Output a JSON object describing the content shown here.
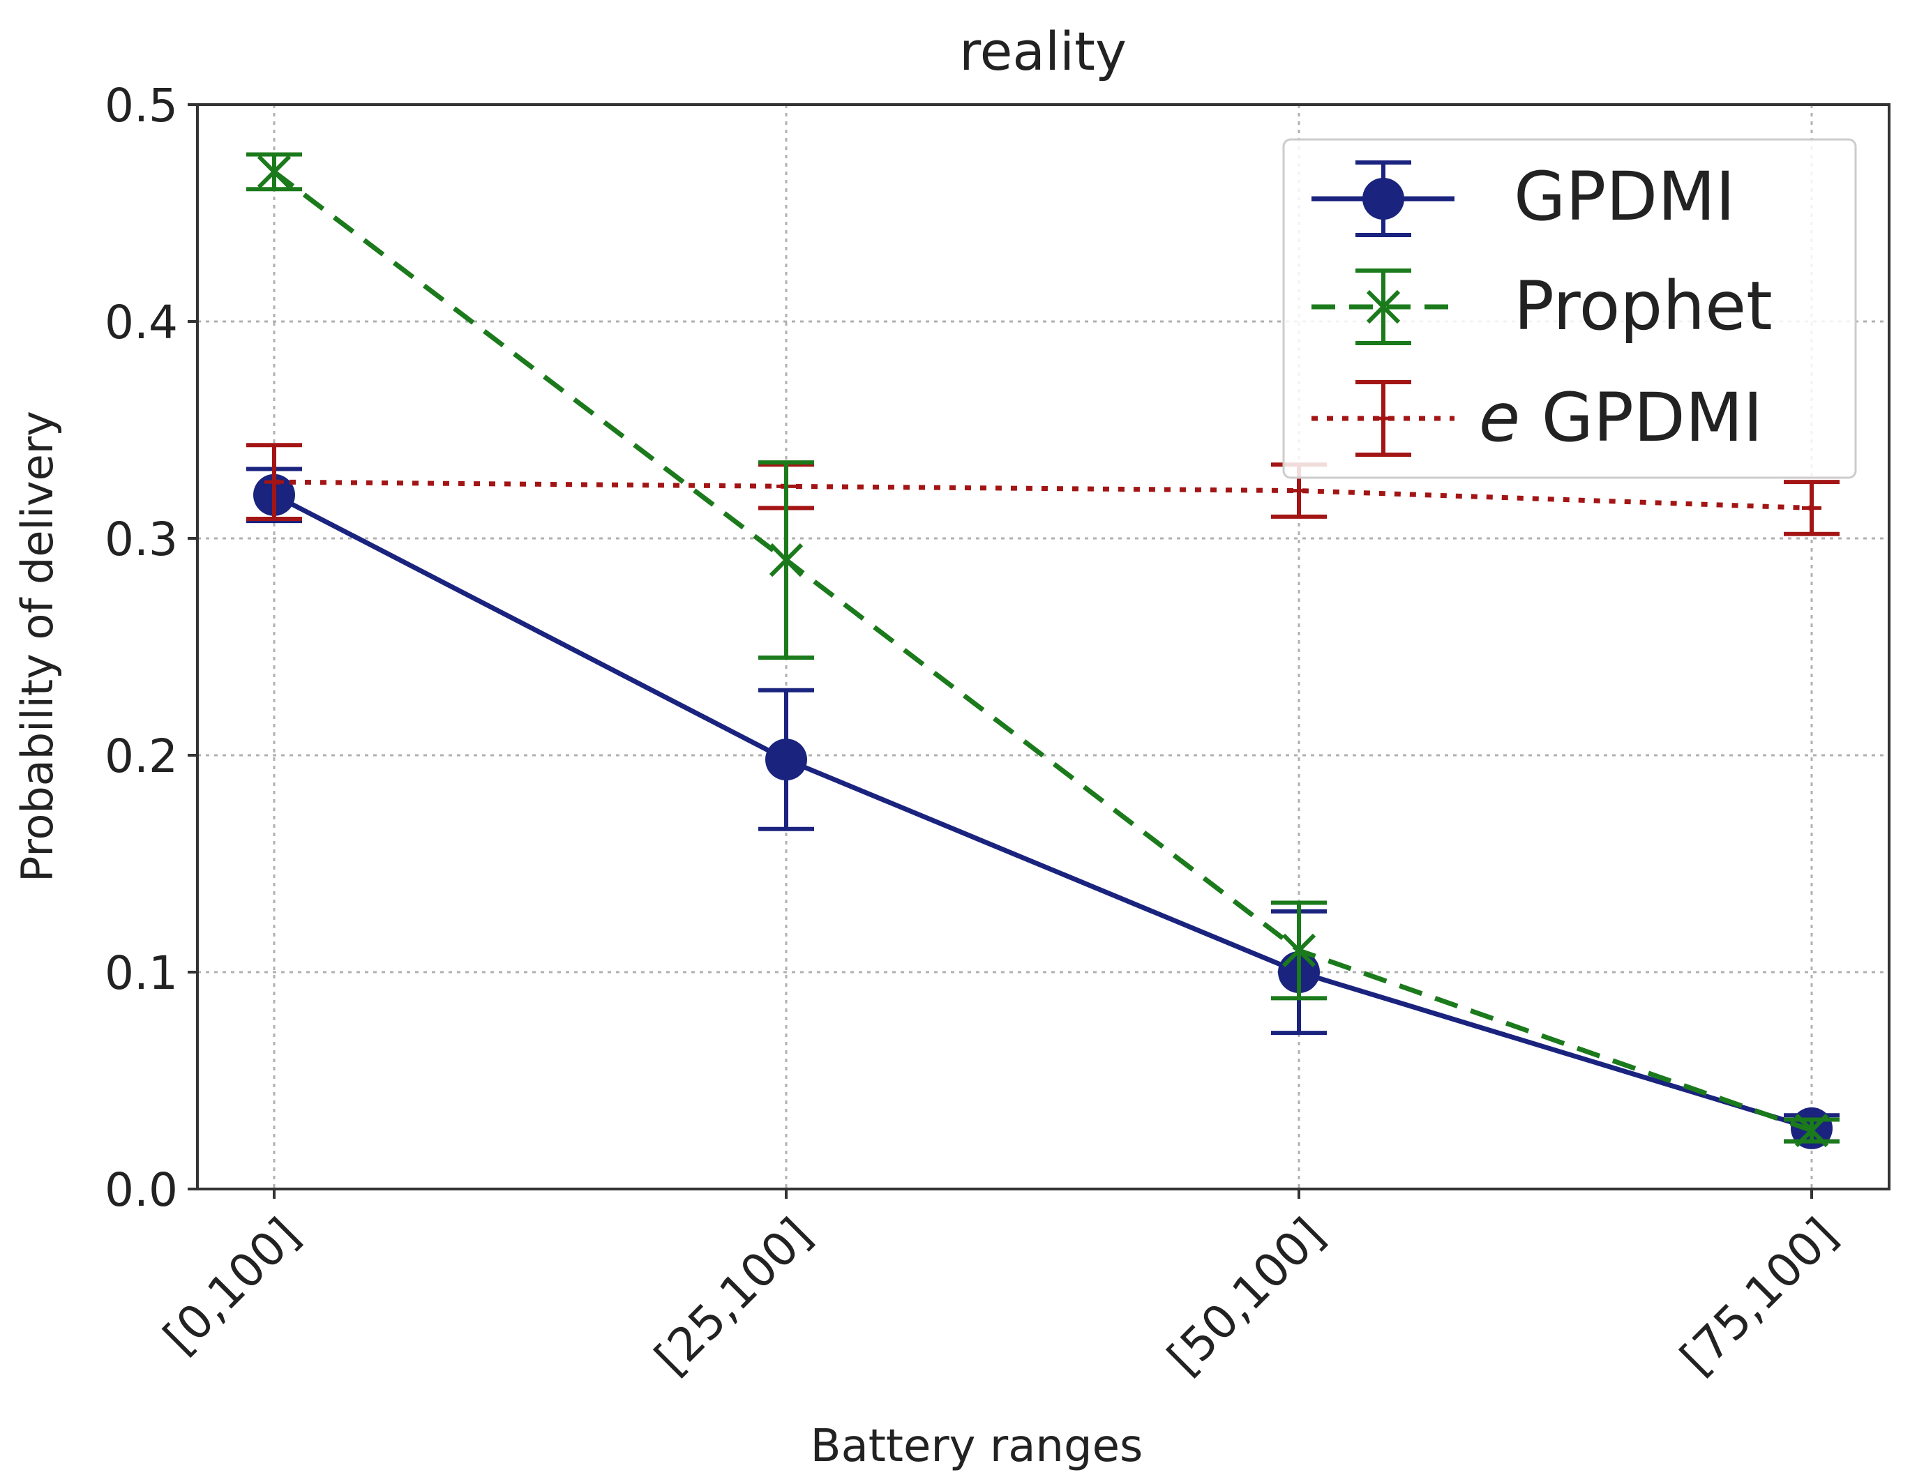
{
  "chart_data": {
    "type": "line",
    "title": "reality",
    "xlabel": "Battery ranges",
    "ylabel": "Probability of delivery",
    "categories": [
      "[0,100]",
      "[25,100]",
      "[50,100]",
      "[75,100]"
    ],
    "ylim": [
      0.0,
      0.5
    ],
    "yticks": [
      0.0,
      0.1,
      0.2,
      0.3,
      0.4,
      0.5
    ],
    "ytick_labels": [
      "0.0",
      "0.1",
      "0.2",
      "0.3",
      "0.4",
      "0.5"
    ],
    "grid": true,
    "legend_position": "top-right",
    "series": [
      {
        "name": "GPDMI",
        "legend_label": "GPDMI",
        "color": "#1a237e",
        "line_style": "solid",
        "marker": "circle",
        "values": [
          0.32,
          0.198,
          0.1,
          0.028
        ],
        "errors": [
          0.012,
          0.032,
          0.028,
          0.006
        ]
      },
      {
        "name": "Prophet",
        "legend_label": "Prophet",
        "color": "#1b7a1b",
        "line_style": "dashed",
        "marker": "x",
        "values": [
          0.469,
          0.29,
          0.11,
          0.027
        ],
        "errors": [
          0.008,
          0.045,
          0.022,
          0.005
        ]
      },
      {
        "name": "eGPDMI",
        "legend_label_italic": "e",
        "legend_label_rest": "GPDMI",
        "color": "#a31515",
        "line_style": "dotted",
        "marker": "tick",
        "values": [
          0.326,
          0.324,
          0.322,
          0.314
        ],
        "errors": [
          0.017,
          0.01,
          0.012,
          0.012
        ]
      }
    ]
  }
}
